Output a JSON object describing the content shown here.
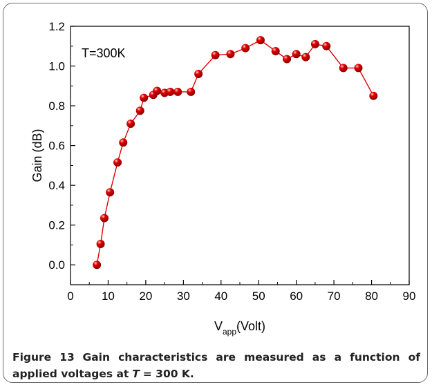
{
  "chart_data": {
    "type": "line",
    "xlabel_main": "V",
    "xlabel_sub": "app",
    "xlabel_rest": "(Volt)",
    "ylabel": "Gain (dB)",
    "annotation": "T=300K",
    "xlim": [
      0,
      90
    ],
    "ylim": [
      -0.1,
      1.2
    ],
    "xticks": [
      0,
      10,
      20,
      30,
      40,
      50,
      60,
      70,
      80,
      90
    ],
    "yticks": [
      0.0,
      0.2,
      0.4,
      0.6,
      0.8,
      1.0,
      1.2
    ],
    "xtick_labels": [
      "0",
      "10",
      "20",
      "30",
      "40",
      "50",
      "60",
      "70",
      "80",
      "90"
    ],
    "ytick_labels": [
      "0.0",
      "0.2",
      "0.4",
      "0.6",
      "0.8",
      "1.0",
      "1.2"
    ],
    "marker_color": "#e00000",
    "line_color": "#e00000",
    "series": [
      {
        "x": [
          7,
          8,
          9,
          10.5,
          12.5,
          14,
          16,
          18.5,
          19.5,
          22,
          23,
          25,
          26.5,
          28.5,
          32,
          34,
          38.5,
          42.5,
          46.5,
          50.5,
          54.5,
          57.5,
          60,
          62.5,
          65,
          68,
          72.5,
          76.5,
          80.5
        ],
        "y": [
          0.0,
          0.105,
          0.235,
          0.365,
          0.515,
          0.615,
          0.71,
          0.775,
          0.84,
          0.855,
          0.875,
          0.865,
          0.87,
          0.87,
          0.87,
          0.96,
          1.055,
          1.06,
          1.09,
          1.13,
          1.075,
          1.035,
          1.06,
          1.045,
          1.11,
          1.1,
          0.99,
          0.99,
          0.85
        ]
      }
    ]
  },
  "caption": {
    "lead": "Figure 13",
    "text": "Gain characteristics are measured as a function of applied voltages at",
    "var": "T",
    "tail": "= 300 K."
  }
}
